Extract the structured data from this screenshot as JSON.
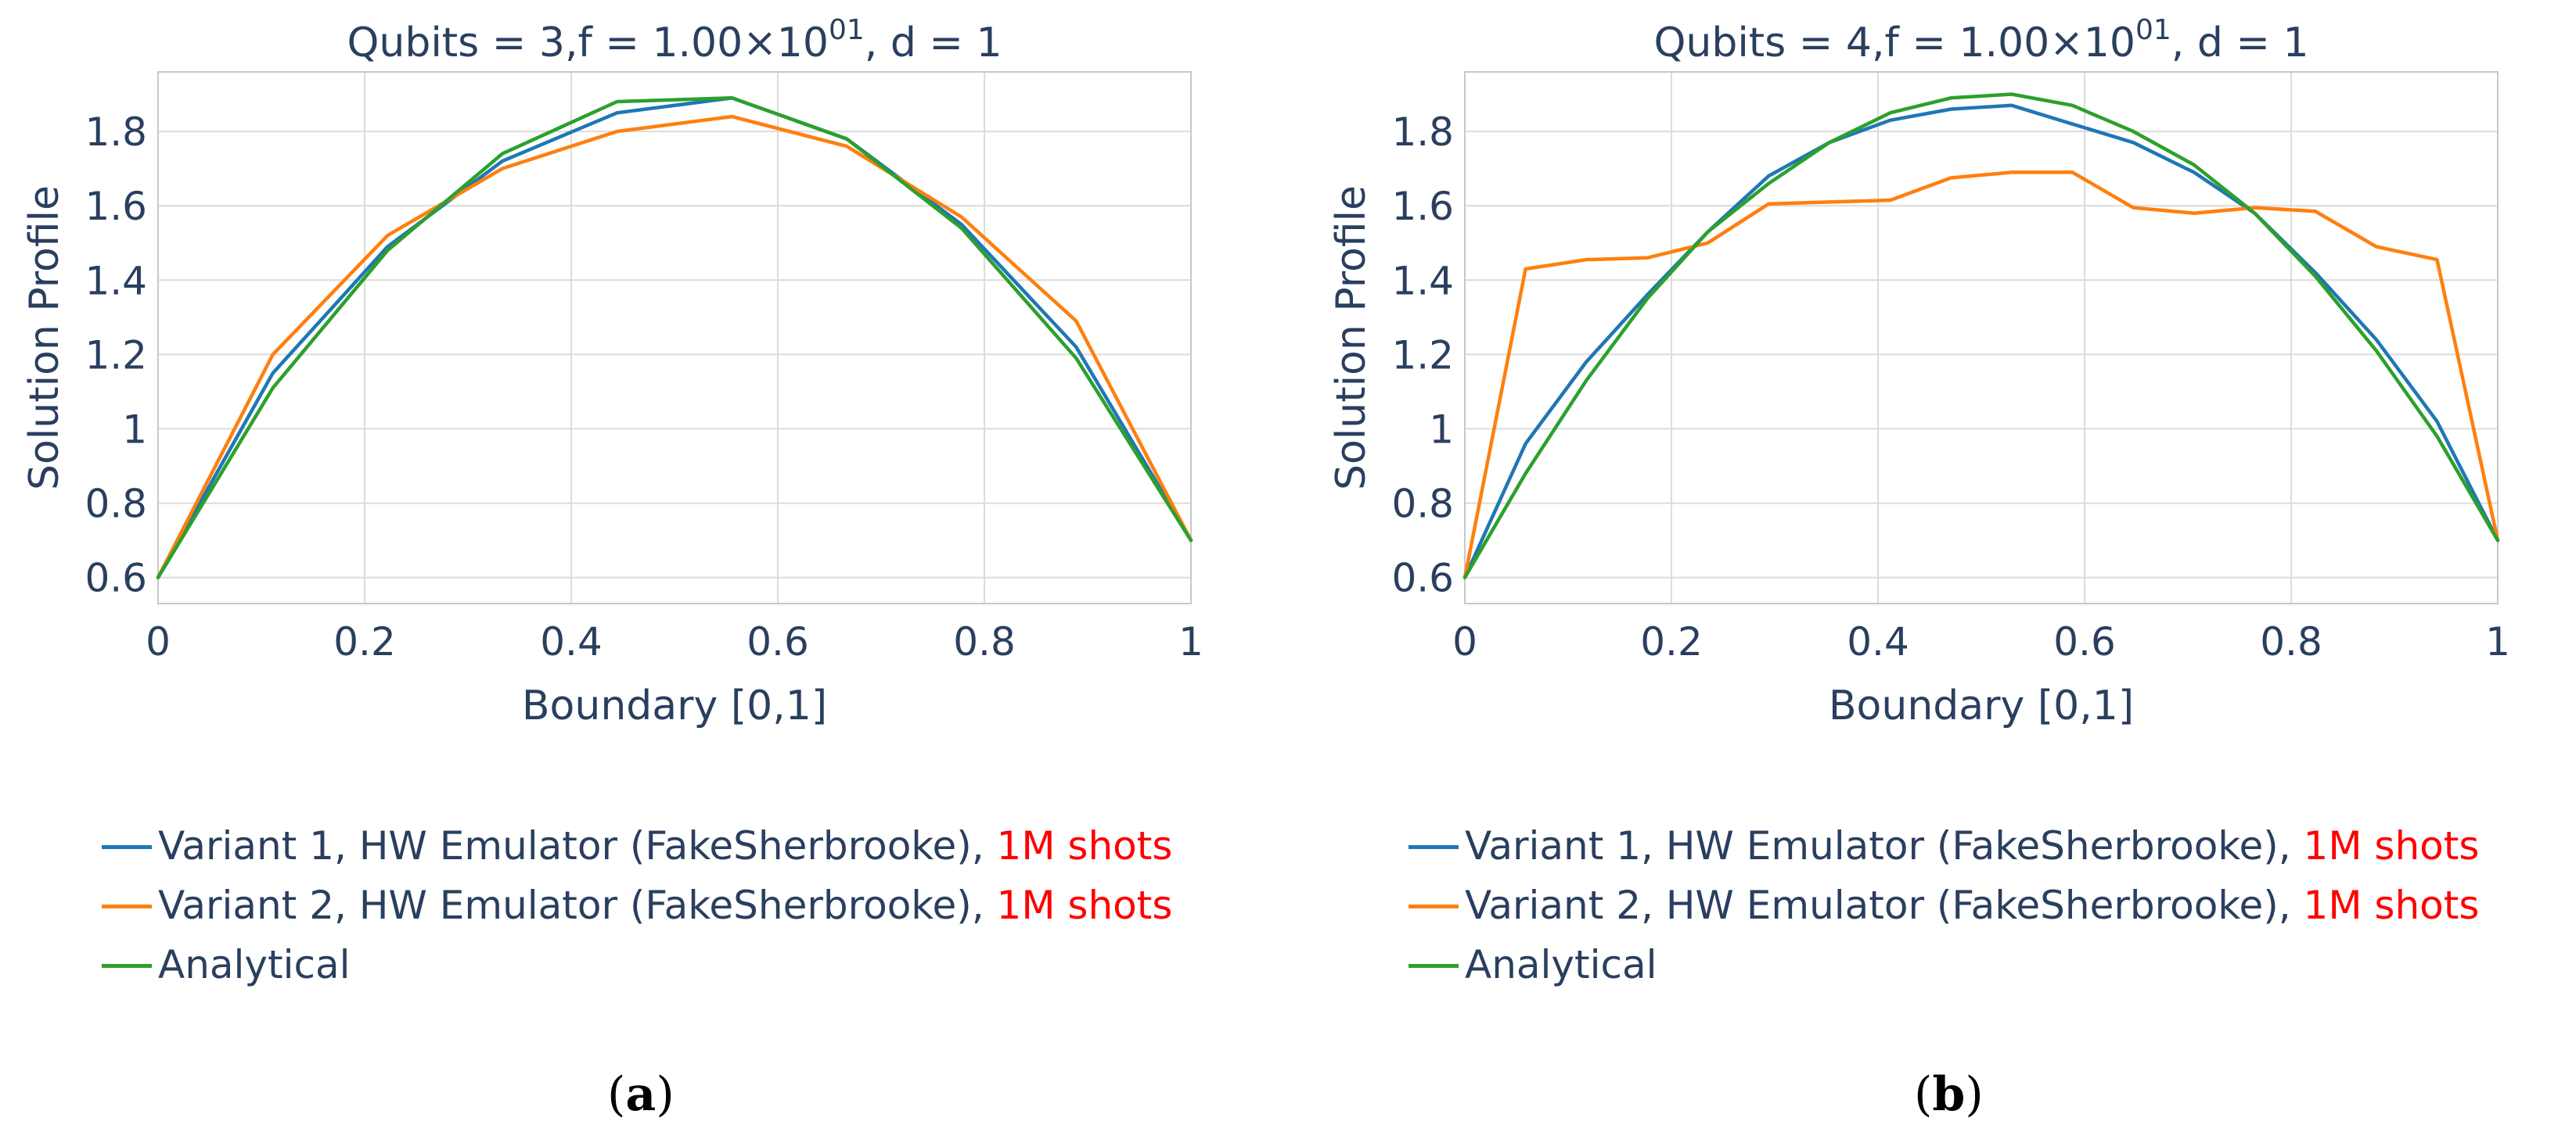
{
  "chart_data": [
    {
      "type": "line",
      "title": "Qubits = 3,f = 1.00×10",
      "title_exp": "01",
      "title_suffix": ", d = 1",
      "xlabel": "Boundary [0,1]",
      "ylabel": "Solution Profile",
      "xlim": [
        0,
        1
      ],
      "ylim": [
        0.53,
        1.96
      ],
      "xticks": [
        "0",
        "0.2",
        "0.4",
        "0.6",
        "0.8",
        "1"
      ],
      "yticks": [
        "0.6",
        "0.8",
        "1",
        "1.2",
        "1.4",
        "1.6",
        "1.8"
      ],
      "grid": true,
      "legend_position": "bottom",
      "series": [
        {
          "name": "Variant 1, HW Emulator (FakeSherbrooke), ",
          "name_highlight": "1M shots",
          "color": "#1f77b4",
          "x": [
            0,
            0.1111,
            0.2222,
            0.3333,
            0.4444,
            0.5556,
            0.6667,
            0.7778,
            0.8889,
            1
          ],
          "y": [
            0.6,
            1.15,
            1.49,
            1.72,
            1.85,
            1.89,
            1.78,
            1.55,
            1.22,
            0.7
          ]
        },
        {
          "name": "Variant 2, HW Emulator (FakeSherbrooke), ",
          "name_highlight": "1M shots",
          "color": "#ff7f0e",
          "x": [
            0,
            0.1111,
            0.2222,
            0.3333,
            0.4444,
            0.5556,
            0.6667,
            0.7778,
            0.8889,
            1
          ],
          "y": [
            0.6,
            1.2,
            1.52,
            1.7,
            1.8,
            1.84,
            1.76,
            1.57,
            1.29,
            0.7
          ]
        },
        {
          "name": "Analytical",
          "name_highlight": "",
          "color": "#2ca02c",
          "x": [
            0,
            0.1111,
            0.2222,
            0.3333,
            0.4444,
            0.5556,
            0.6667,
            0.7778,
            0.8889,
            1
          ],
          "y": [
            0.6,
            1.11,
            1.48,
            1.74,
            1.88,
            1.89,
            1.78,
            1.54,
            1.19,
            0.7
          ]
        }
      ]
    },
    {
      "type": "line",
      "title": "Qubits = 4,f = 1.00×10",
      "title_exp": "01",
      "title_suffix": ", d = 1",
      "xlabel": "Boundary [0,1]",
      "ylabel": "Solution Profile",
      "xlim": [
        0,
        1
      ],
      "ylim": [
        0.53,
        1.96
      ],
      "xticks": [
        "0",
        "0.2",
        "0.4",
        "0.6",
        "0.8",
        "1"
      ],
      "yticks": [
        "0.6",
        "0.8",
        "1",
        "1.2",
        "1.4",
        "1.6",
        "1.8"
      ],
      "grid": true,
      "legend_position": "bottom",
      "series": [
        {
          "name": "Variant 1, HW Emulator (FakeSherbrooke), ",
          "name_highlight": "1M shots",
          "color": "#1f77b4",
          "x": [
            0,
            0.0588,
            0.1176,
            0.1765,
            0.2353,
            0.2941,
            0.3529,
            0.4118,
            0.4706,
            0.5294,
            0.5882,
            0.6471,
            0.7059,
            0.7647,
            0.8235,
            0.8824,
            0.9412,
            1
          ],
          "y": [
            0.6,
            0.96,
            1.18,
            1.36,
            1.53,
            1.68,
            1.77,
            1.83,
            1.86,
            1.87,
            1.82,
            1.77,
            1.69,
            1.58,
            1.42,
            1.24,
            1.02,
            0.7
          ]
        },
        {
          "name": "Variant 2, HW Emulator (FakeSherbrooke), ",
          "name_highlight": "1M shots",
          "color": "#ff7f0e",
          "x": [
            0,
            0.0588,
            0.1176,
            0.1765,
            0.2353,
            0.2941,
            0.3529,
            0.4118,
            0.4706,
            0.5294,
            0.5882,
            0.6471,
            0.7059,
            0.7647,
            0.8235,
            0.8824,
            0.9412,
            1
          ],
          "y": [
            0.6,
            1.43,
            1.455,
            1.46,
            1.5,
            1.605,
            1.61,
            1.615,
            1.675,
            1.69,
            1.69,
            1.595,
            1.58,
            1.595,
            1.585,
            1.49,
            1.455,
            0.7
          ]
        },
        {
          "name": "Analytical",
          "name_highlight": "",
          "color": "#2ca02c",
          "x": [
            0,
            0.0588,
            0.1176,
            0.1765,
            0.2353,
            0.2941,
            0.3529,
            0.4118,
            0.4706,
            0.5294,
            0.5882,
            0.6471,
            0.7059,
            0.7647,
            0.8235,
            0.8824,
            0.9412,
            1
          ],
          "y": [
            0.6,
            0.88,
            1.13,
            1.35,
            1.53,
            1.66,
            1.77,
            1.85,
            1.89,
            1.9,
            1.87,
            1.8,
            1.71,
            1.58,
            1.41,
            1.21,
            0.98,
            0.7
          ]
        }
      ]
    }
  ],
  "panel_labels": [
    "a",
    "b"
  ]
}
